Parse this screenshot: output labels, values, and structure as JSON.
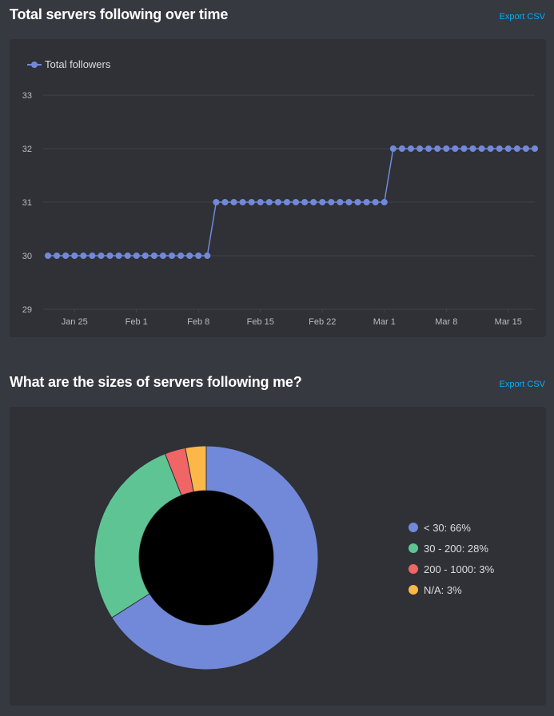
{
  "sections": {
    "followers": {
      "title": "Total servers following over time",
      "export_label": "Export CSV"
    },
    "sizes": {
      "title": "What are the sizes of servers following me?",
      "export_label": "Export CSV"
    }
  },
  "colors": {
    "line": "#7289da",
    "grid": "#40444b",
    "tick_text": "#b9bbbe"
  },
  "chart_data": [
    {
      "type": "line",
      "title": "Total servers following over time",
      "xlabel": "",
      "ylabel": "",
      "ylim": [
        29,
        33
      ],
      "yticks": [
        29,
        30,
        31,
        32,
        33
      ],
      "xlim": [
        "2021-01-22",
        "2021-03-18"
      ],
      "xticks": [
        {
          "date": "2021-01-25",
          "label": "Jan 25"
        },
        {
          "date": "2021-02-01",
          "label": "Feb 1"
        },
        {
          "date": "2021-02-08",
          "label": "Feb 8"
        },
        {
          "date": "2021-02-15",
          "label": "Feb 15"
        },
        {
          "date": "2021-02-22",
          "label": "Feb 22"
        },
        {
          "date": "2021-03-01",
          "label": "Mar 1"
        },
        {
          "date": "2021-03-08",
          "label": "Mar 8"
        },
        {
          "date": "2021-03-15",
          "label": "Mar 15"
        }
      ],
      "legend": "top-left",
      "grid": true,
      "series": [
        {
          "name": "Total followers",
          "color": "#7289da",
          "x": [
            "2021-01-22",
            "2021-01-23",
            "2021-01-24",
            "2021-01-25",
            "2021-01-26",
            "2021-01-27",
            "2021-01-28",
            "2021-01-29",
            "2021-01-30",
            "2021-01-31",
            "2021-02-01",
            "2021-02-02",
            "2021-02-03",
            "2021-02-04",
            "2021-02-05",
            "2021-02-06",
            "2021-02-07",
            "2021-02-08",
            "2021-02-09",
            "2021-02-10",
            "2021-02-11",
            "2021-02-12",
            "2021-02-13",
            "2021-02-14",
            "2021-02-15",
            "2021-02-16",
            "2021-02-17",
            "2021-02-18",
            "2021-02-19",
            "2021-02-20",
            "2021-02-21",
            "2021-02-22",
            "2021-02-23",
            "2021-02-24",
            "2021-02-25",
            "2021-02-26",
            "2021-02-27",
            "2021-02-28",
            "2021-03-01",
            "2021-03-02",
            "2021-03-03",
            "2021-03-04",
            "2021-03-05",
            "2021-03-06",
            "2021-03-07",
            "2021-03-08",
            "2021-03-09",
            "2021-03-10",
            "2021-03-11",
            "2021-03-12",
            "2021-03-13",
            "2021-03-14",
            "2021-03-15",
            "2021-03-16",
            "2021-03-17",
            "2021-03-18"
          ],
          "values": [
            30,
            30,
            30,
            30,
            30,
            30,
            30,
            30,
            30,
            30,
            30,
            30,
            30,
            30,
            30,
            30,
            30,
            30,
            30,
            31,
            31,
            31,
            31,
            31,
            31,
            31,
            31,
            31,
            31,
            31,
            31,
            31,
            31,
            31,
            31,
            31,
            31,
            31,
            31,
            32,
            32,
            32,
            32,
            32,
            32,
            32,
            32,
            32,
            32,
            32,
            32,
            32,
            32,
            32,
            32,
            32
          ]
        }
      ]
    },
    {
      "type": "pie",
      "title": "What are the sizes of servers following me?",
      "donut": true,
      "legend": "right",
      "slices": [
        {
          "label": "< 30",
          "value": 66,
          "legend_text": "< 30: 66%",
          "color": "#7289da"
        },
        {
          "label": "30 - 200",
          "value": 28,
          "legend_text": "30 - 200: 28%",
          "color": "#5fc494"
        },
        {
          "label": "200 - 1000",
          "value": 3,
          "legend_text": "200 - 1000: 3%",
          "color": "#f06565"
        },
        {
          "label": "N/A",
          "value": 3,
          "legend_text": "N/A: 3%",
          "color": "#fbb848"
        }
      ]
    }
  ]
}
